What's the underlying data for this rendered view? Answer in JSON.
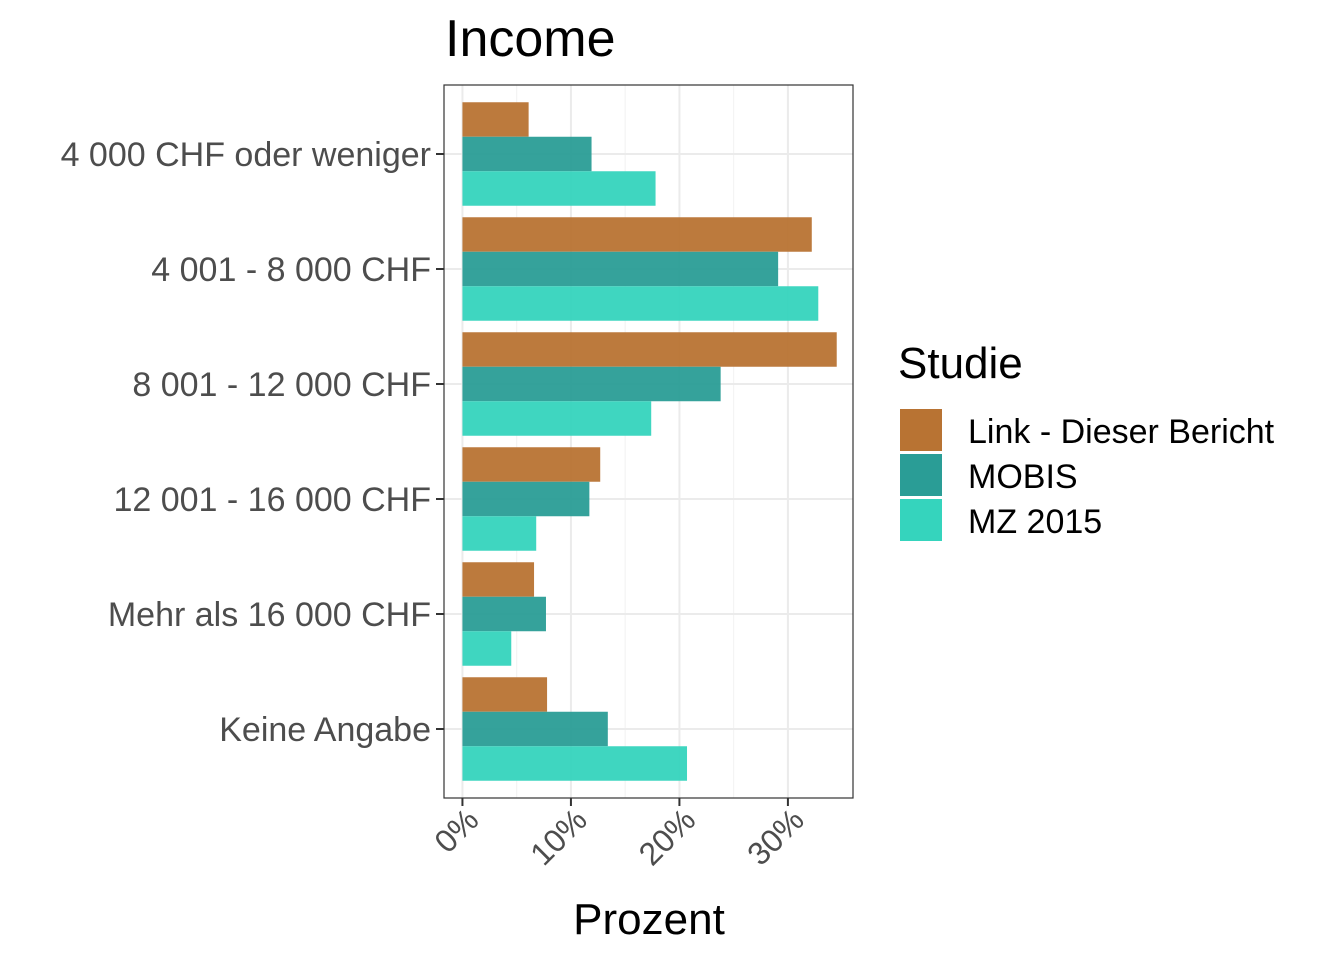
{
  "chart_data": {
    "type": "bar",
    "orientation": "horizontal",
    "title": "Income",
    "xlabel": "Prozent",
    "ylabel": "",
    "xlim": [
      -1.7,
      36
    ],
    "x_ticks": [
      0,
      10,
      20,
      30
    ],
    "x_tick_labels": [
      "0%",
      "10%",
      "20%",
      "30%"
    ],
    "grid": true,
    "legend": {
      "title": "Studie",
      "position": "right"
    },
    "categories": [
      "4 000 CHF oder weniger",
      "4 001 - 8 000 CHF",
      "8 001 - 12 000 CHF",
      "12 001 - 16 000 CHF",
      "Mehr als 16 000 CHF",
      "Keine Angabe"
    ],
    "series": [
      {
        "name": "Link - Dieser Bericht",
        "color": "#b87333",
        "values": [
          6.1,
          32.2,
          34.5,
          12.7,
          6.6,
          7.8
        ]
      },
      {
        "name": "MOBIS",
        "color": "#2a9d96",
        "values": [
          11.9,
          29.1,
          23.8,
          11.7,
          7.7,
          13.4
        ]
      },
      {
        "name": "MZ 2015",
        "color": "#35d4bd",
        "values": [
          17.8,
          32.8,
          17.4,
          6.8,
          4.5,
          20.7
        ]
      }
    ]
  }
}
